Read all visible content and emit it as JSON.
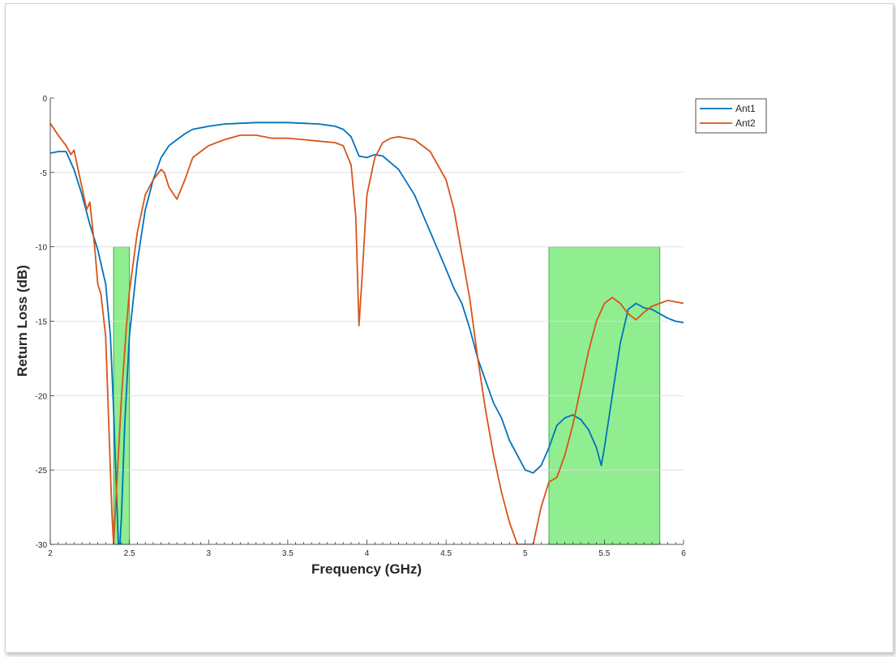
{
  "chart_data": {
    "type": "line",
    "xlabel": "Frequency (GHz)",
    "ylabel": "Return Loss (dB)",
    "xlim": [
      2,
      6
    ],
    "ylim": [
      -30,
      0
    ],
    "x_ticks": [
      2,
      2.5,
      3,
      3.5,
      4,
      4.5,
      5,
      5.5,
      6
    ],
    "x_tick_labels": [
      "2",
      "2.5",
      "3",
      "3.5",
      "4",
      "4.5",
      "5",
      "5.5",
      "6"
    ],
    "y_ticks": [
      0,
      -5,
      -10,
      -15,
      -20,
      -25,
      -30
    ],
    "y_tick_labels": [
      "0",
      "-5",
      "-10",
      "-15",
      "-20",
      "-25",
      "-30"
    ],
    "grid": true,
    "legend_position": "outside-top-right",
    "highlight_bands": [
      {
        "x_start": 2.4,
        "x_end": 2.5,
        "y_top": -10,
        "y_bottom": -30,
        "color": "#90ee90"
      },
      {
        "x_start": 5.15,
        "x_end": 5.85,
        "y_top": -10,
        "y_bottom": -30,
        "color": "#90ee90"
      }
    ],
    "series": [
      {
        "name": "Ant1",
        "color": "#0072bd",
        "x": [
          2.0,
          2.05,
          2.1,
          2.15,
          2.2,
          2.25,
          2.3,
          2.35,
          2.38,
          2.4,
          2.42,
          2.43,
          2.44,
          2.45,
          2.47,
          2.5,
          2.55,
          2.6,
          2.65,
          2.7,
          2.75,
          2.8,
          2.85,
          2.9,
          3.0,
          3.1,
          3.2,
          3.3,
          3.4,
          3.5,
          3.6,
          3.7,
          3.8,
          3.85,
          3.9,
          3.95,
          4.0,
          4.05,
          4.1,
          4.2,
          4.3,
          4.4,
          4.5,
          4.55,
          4.6,
          4.65,
          4.7,
          4.75,
          4.8,
          4.85,
          4.9,
          4.95,
          5.0,
          5.05,
          5.1,
          5.15,
          5.2,
          5.25,
          5.3,
          5.35,
          5.4,
          5.45,
          5.48,
          5.5,
          5.55,
          5.6,
          5.65,
          5.7,
          5.75,
          5.8,
          5.85,
          5.9,
          5.95,
          6.0
        ],
        "y": [
          -3.7,
          -3.6,
          -3.6,
          -4.8,
          -6.5,
          -8.5,
          -10.2,
          -12.5,
          -16,
          -21,
          -27,
          -30,
          -30,
          -28,
          -22,
          -16,
          -11,
          -7.5,
          -5.5,
          -4,
          -3.2,
          -2.8,
          -2.4,
          -2.1,
          -1.9,
          -1.75,
          -1.7,
          -1.65,
          -1.65,
          -1.65,
          -1.7,
          -1.75,
          -1.9,
          -2.1,
          -2.6,
          -3.9,
          -4.0,
          -3.8,
          -3.9,
          -4.8,
          -6.5,
          -9,
          -11.5,
          -12.8,
          -13.8,
          -15.5,
          -17.5,
          -19,
          -20.5,
          -21.5,
          -23,
          -24,
          -25,
          -25.2,
          -24.7,
          -23.5,
          -22,
          -21.5,
          -21.3,
          -21.6,
          -22.3,
          -23.5,
          -24.7,
          -23.5,
          -20,
          -16.5,
          -14.2,
          -13.8,
          -14.1,
          -14.2,
          -14.5,
          -14.8,
          -15,
          -15.1
        ]
      },
      {
        "name": "Ant2",
        "color": "#d95319",
        "x": [
          2.0,
          2.05,
          2.1,
          2.13,
          2.15,
          2.18,
          2.2,
          2.23,
          2.25,
          2.28,
          2.3,
          2.32,
          2.35,
          2.37,
          2.39,
          2.4,
          2.42,
          2.45,
          2.48,
          2.5,
          2.55,
          2.6,
          2.65,
          2.7,
          2.72,
          2.75,
          2.8,
          2.85,
          2.9,
          3.0,
          3.1,
          3.2,
          3.3,
          3.4,
          3.5,
          3.6,
          3.7,
          3.8,
          3.85,
          3.9,
          3.93,
          3.95,
          3.97,
          4.0,
          4.05,
          4.1,
          4.15,
          4.2,
          4.3,
          4.4,
          4.5,
          4.55,
          4.6,
          4.65,
          4.7,
          4.75,
          4.8,
          4.85,
          4.9,
          4.95,
          5.0,
          5.05,
          5.1,
          5.15,
          5.2,
          5.25,
          5.3,
          5.35,
          5.4,
          5.45,
          5.5,
          5.55,
          5.6,
          5.65,
          5.7,
          5.75,
          5.8,
          5.85,
          5.9,
          5.95,
          6.0
        ],
        "y": [
          -1.7,
          -2.5,
          -3.2,
          -3.8,
          -3.5,
          -5,
          -6,
          -7.5,
          -7,
          -10,
          -12.5,
          -13.2,
          -16,
          -22,
          -28,
          -30,
          -26,
          -20,
          -15.5,
          -13,
          -9,
          -6.5,
          -5.5,
          -4.8,
          -5,
          -6,
          -6.8,
          -5.5,
          -4,
          -3.2,
          -2.8,
          -2.5,
          -2.5,
          -2.7,
          -2.7,
          -2.8,
          -2.9,
          -3.0,
          -3.2,
          -4.5,
          -8,
          -15.3,
          -12,
          -6.5,
          -4,
          -3,
          -2.7,
          -2.6,
          -2.8,
          -3.6,
          -5.5,
          -7.5,
          -10.5,
          -13.5,
          -17.5,
          -21,
          -24,
          -26.5,
          -28.5,
          -30,
          -30,
          -30,
          -27.5,
          -25.8,
          -25.5,
          -24,
          -22,
          -19.5,
          -17,
          -15,
          -13.8,
          -13.4,
          -13.8,
          -14.5,
          -14.9,
          -14.4,
          -14,
          -13.8,
          -13.6,
          -13.7,
          -13.8
        ]
      }
    ]
  }
}
